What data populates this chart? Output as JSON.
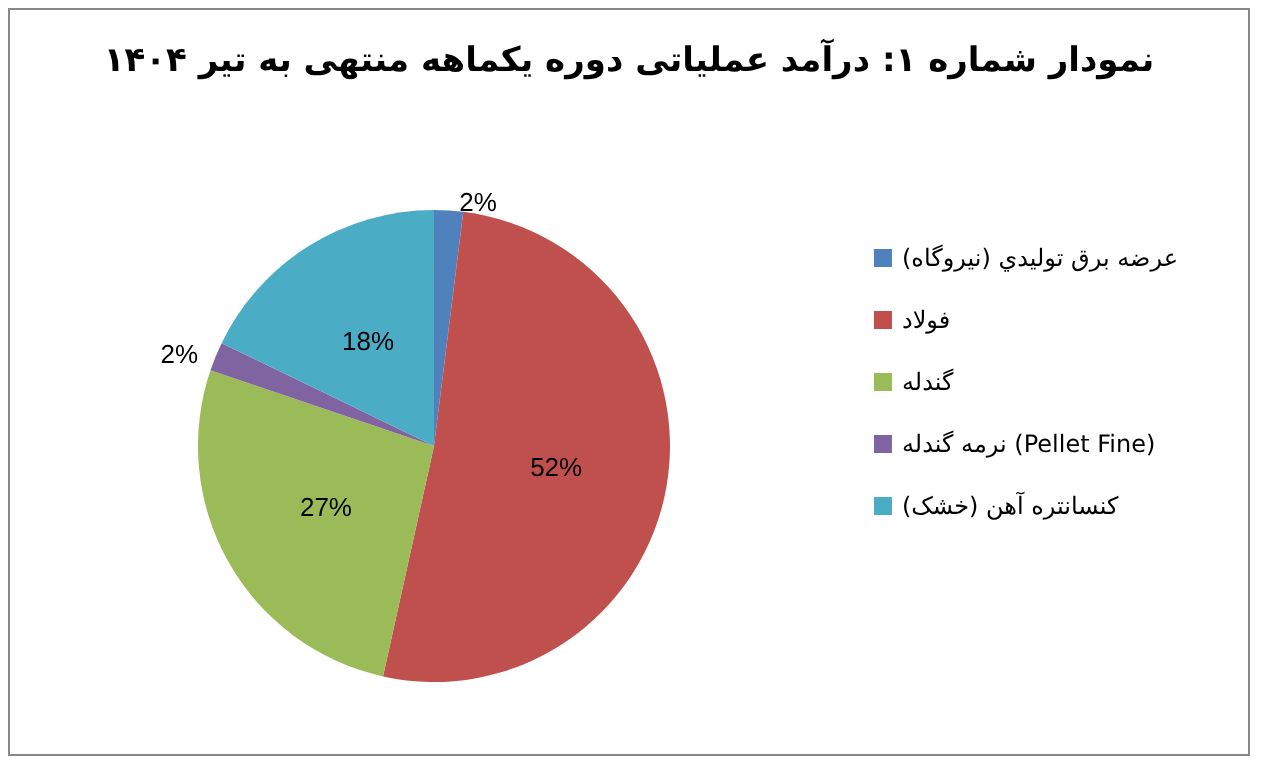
{
  "chart_data": {
    "type": "pie",
    "title": "نمودار شماره ۱: درآمد عملیاتی دوره یکماهه منتهی به تیر ۱۴۰۴",
    "categories": [
      "عرضه برق توليدي (نيروگاه)",
      "فولاد",
      "گندله",
      "نرمه گندله (Pellet Fine)",
      "کنسانتره آهن (خشک)"
    ],
    "values": [
      2,
      52,
      27,
      2,
      18
    ],
    "colors": [
      "#4f81bd",
      "#c0504d",
      "#9bbb59",
      "#8064a2",
      "#4bacc6"
    ],
    "value_labels": [
      "2%",
      "52%",
      "27%",
      "2%",
      "18%"
    ],
    "legend": "right"
  }
}
